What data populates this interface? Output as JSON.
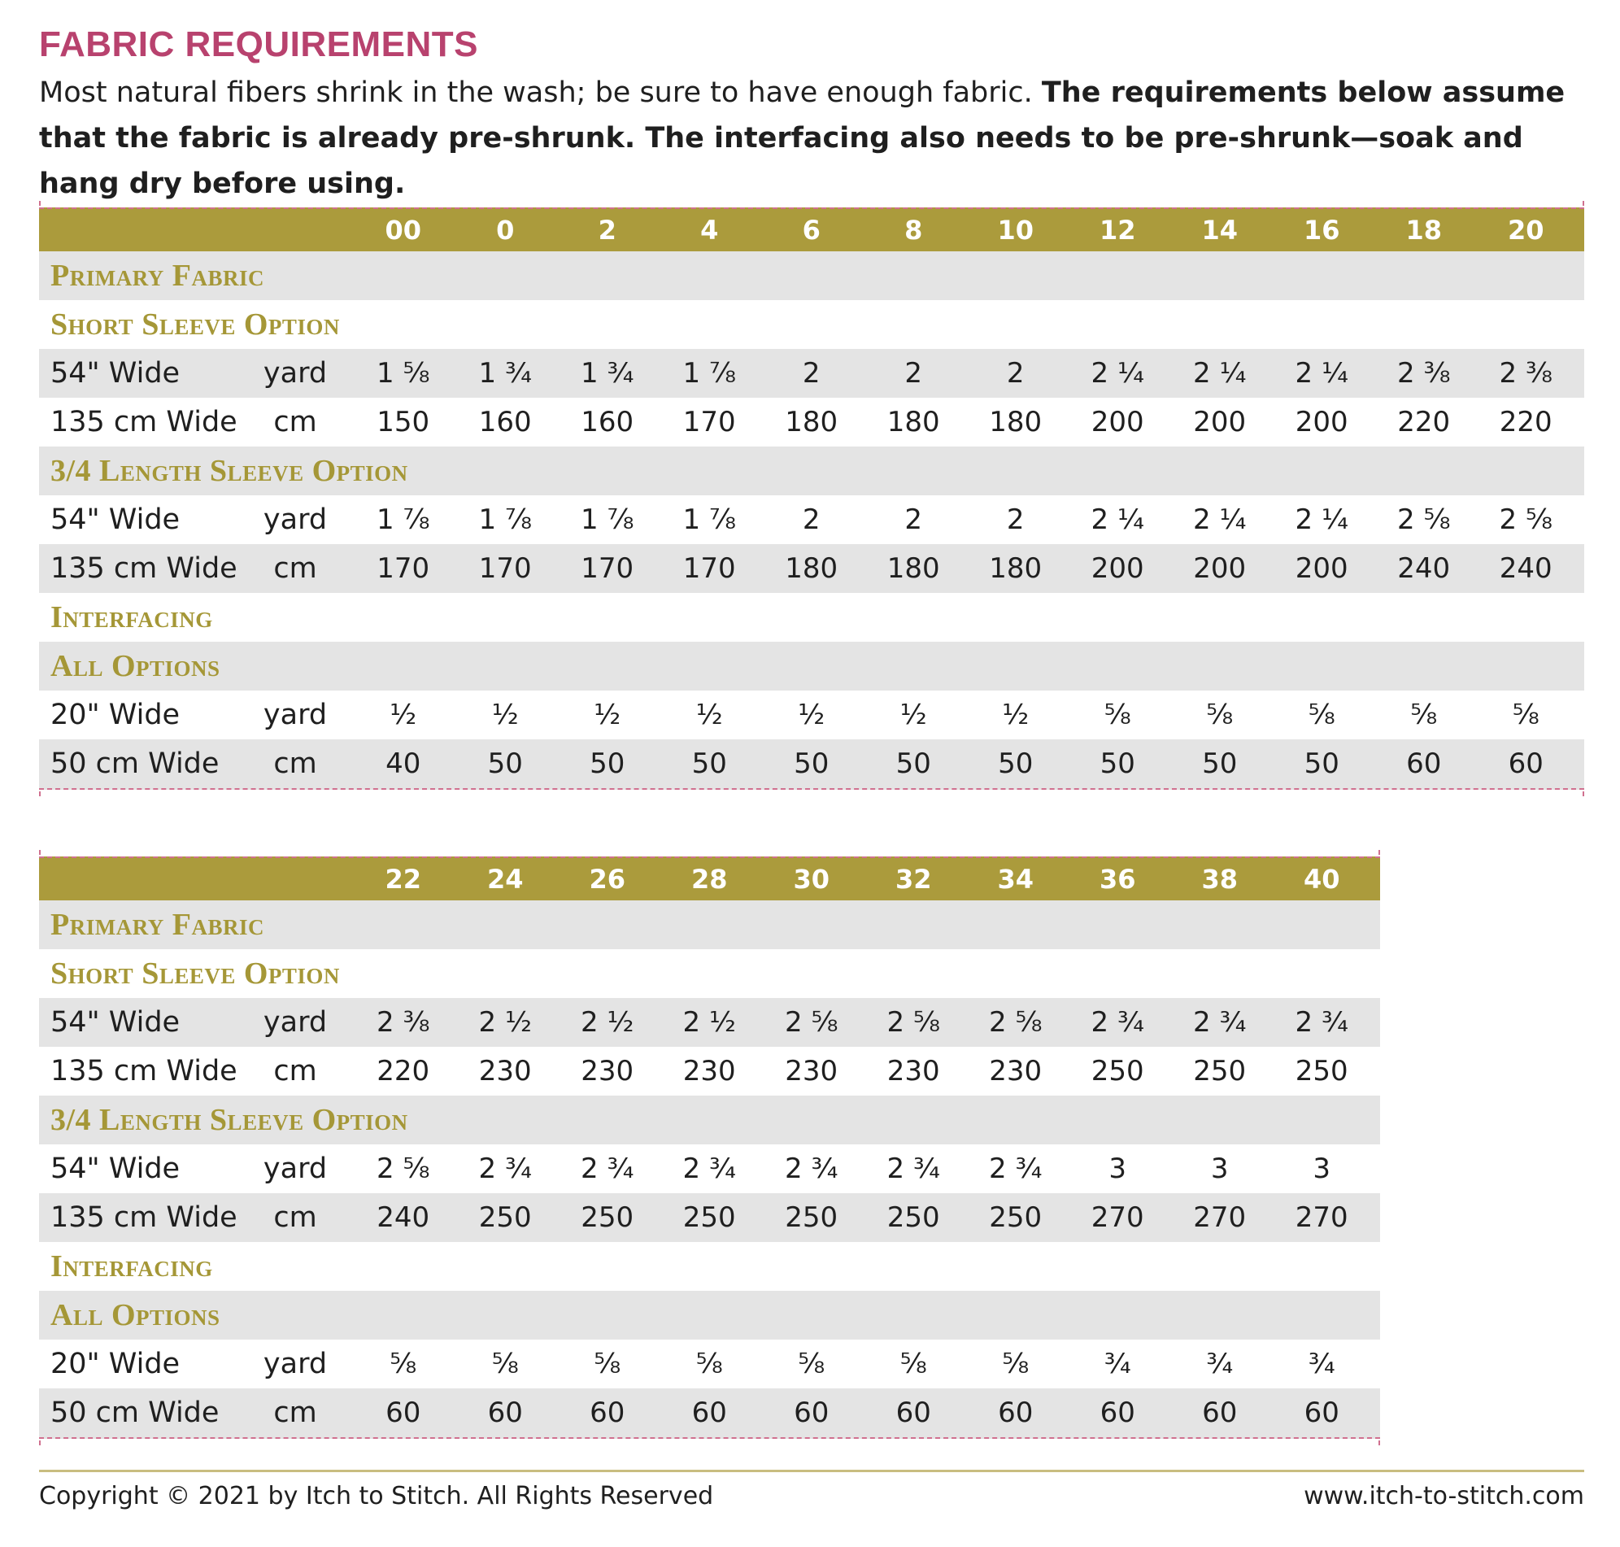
{
  "title": "FABRIC REQUIREMENTS",
  "intro": {
    "normal": "Most natural fibers shrink in the wash; be sure to have enough fabric. ",
    "bold": "The requirements below assume that the fabric is already pre-shrunk. The interfacing also needs to be pre-shrunk—soak and hang dry before using."
  },
  "tables": [
    {
      "sizes": [
        "00",
        "0",
        "2",
        "4",
        "6",
        "8",
        "10",
        "12",
        "14",
        "16",
        "18",
        "20"
      ],
      "primary_fabric": "Primary Fabric",
      "short_sleeve": {
        "title": "Short Sleeve Option",
        "yard": {
          "label": "54\" Wide",
          "unit": "yard",
          "values": [
            "1 ⅝",
            "1 ¾",
            "1 ¾",
            "1 ⅞",
            "2",
            "2",
            "2",
            "2 ¼",
            "2 ¼",
            "2 ¼",
            "2 ⅜",
            "2 ⅜"
          ]
        },
        "cm": {
          "label": "135 cm Wide",
          "unit": "cm",
          "values": [
            "150",
            "160",
            "160",
            "170",
            "180",
            "180",
            "180",
            "200",
            "200",
            "200",
            "220",
            "220"
          ]
        }
      },
      "three_quarter": {
        "title": "3/4 Length Sleeve Option",
        "yard": {
          "label": "54\" Wide",
          "unit": "yard",
          "values": [
            "1 ⅞",
            "1 ⅞",
            "1 ⅞",
            "1 ⅞",
            "2",
            "2",
            "2",
            "2 ¼",
            "2 ¼",
            "2 ¼",
            "2 ⅝",
            "2 ⅝"
          ]
        },
        "cm": {
          "label": "135 cm Wide",
          "unit": "cm",
          "values": [
            "170",
            "170",
            "170",
            "170",
            "180",
            "180",
            "180",
            "200",
            "200",
            "200",
            "240",
            "240"
          ]
        }
      },
      "interfacing": "Interfacing",
      "all_options": {
        "title": "All Options",
        "yard": {
          "label": "20\" Wide",
          "unit": "yard",
          "values": [
            "½",
            "½",
            "½",
            "½",
            "½",
            "½",
            "½",
            "⅝",
            "⅝",
            "⅝",
            "⅝",
            "⅝"
          ]
        },
        "cm": {
          "label": "50 cm Wide",
          "unit": "cm",
          "values": [
            "40",
            "50",
            "50",
            "50",
            "50",
            "50",
            "50",
            "50",
            "50",
            "50",
            "60",
            "60"
          ]
        }
      }
    },
    {
      "sizes": [
        "22",
        "24",
        "26",
        "28",
        "30",
        "32",
        "34",
        "36",
        "38",
        "40"
      ],
      "primary_fabric": "Primary Fabric",
      "short_sleeve": {
        "title": "Short Sleeve Option",
        "yard": {
          "label": "54\" Wide",
          "unit": "yard",
          "values": [
            "2 ⅜",
            "2 ½",
            "2 ½",
            "2 ½",
            "2 ⅝",
            "2 ⅝",
            "2 ⅝",
            "2 ¾",
            "2 ¾",
            "2 ¾"
          ]
        },
        "cm": {
          "label": "135 cm Wide",
          "unit": "cm",
          "values": [
            "220",
            "230",
            "230",
            "230",
            "230",
            "230",
            "230",
            "250",
            "250",
            "250"
          ]
        }
      },
      "three_quarter": {
        "title": "3/4 Length Sleeve Option",
        "yard": {
          "label": "54\" Wide",
          "unit": "yard",
          "values": [
            "2 ⅝",
            "2 ¾",
            "2 ¾",
            "2 ¾",
            "2 ¾",
            "2 ¾",
            "2 ¾",
            "3",
            "3",
            "3"
          ]
        },
        "cm": {
          "label": "135 cm Wide",
          "unit": "cm",
          "values": [
            "240",
            "250",
            "250",
            "250",
            "250",
            "250",
            "250",
            "270",
            "270",
            "270"
          ]
        }
      },
      "interfacing": "Interfacing",
      "all_options": {
        "title": "All Options",
        "yard": {
          "label": "20\" Wide",
          "unit": "yard",
          "values": [
            "⅝",
            "⅝",
            "⅝",
            "⅝",
            "⅝",
            "⅝",
            "⅝",
            "¾",
            "¾",
            "¾"
          ]
        },
        "cm": {
          "label": "50 cm Wide",
          "unit": "cm",
          "values": [
            "60",
            "60",
            "60",
            "60",
            "60",
            "60",
            "60",
            "60",
            "60",
            "60"
          ]
        }
      }
    }
  ],
  "footer": {
    "copyright": "Copyright © 2021 by Itch to Stitch. All Rights Reserved",
    "website": "www.itch-to-stitch.com"
  }
}
